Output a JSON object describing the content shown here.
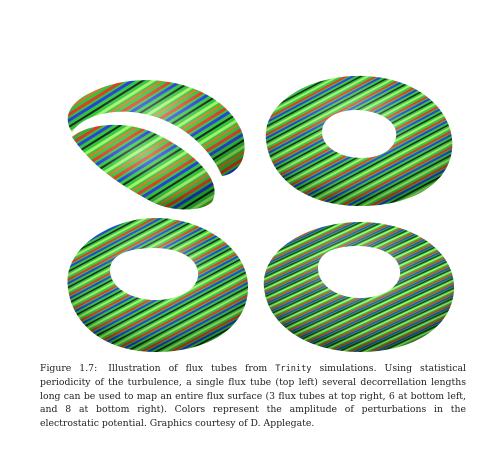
{
  "figure": {
    "caption": {
      "label": "Figure 1.7:",
      "text_before_code": "Illustration of flux tubes from",
      "code": "Trinity",
      "text_after_code": "simulations. Using statistical periodicity of the turbulence, a single flux tube (top left) several decorrellation lengths long can be used to map an entire flux surface (3 flux tubes at top right, 6 at bottom left, and 8 at bottom right). Colors represent the amplitude of perturbations in the electrostatic potential. Graphics courtesy of D. Applegate."
    },
    "panels": [
      {
        "position": "top-left",
        "flux_tubes": 1
      },
      {
        "position": "top-right",
        "flux_tubes": 3
      },
      {
        "position": "bottom-left",
        "flux_tubes": 6
      },
      {
        "position": "bottom-right",
        "flux_tubes": 8
      }
    ],
    "colors": {
      "base_green": "#25c431",
      "highlight_green": "#a8ff6a",
      "stripe_red": "#e0301a",
      "stripe_blue": "#1a36d8",
      "stripe_dark": "#102010"
    }
  }
}
